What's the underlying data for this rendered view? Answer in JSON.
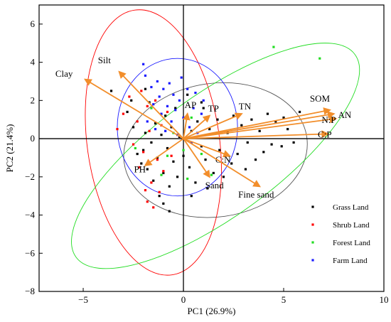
{
  "chart_data": {
    "type": "scatter",
    "subtype": "pca-biplot",
    "xlabel": "PC1 (26.9%)",
    "ylabel": "PC2 (21.4%)",
    "xlim": [
      -7.2,
      10
    ],
    "ylim": [
      -8,
      7
    ],
    "xticks": [
      -5,
      0,
      5,
      10
    ],
    "yticks": [
      -8,
      -6,
      -4,
      -2,
      0,
      2,
      4,
      6
    ],
    "arrow_color": "#f28e2b",
    "loadings": [
      {
        "label": "Clay",
        "x": -4.9,
        "y": 3.1
      },
      {
        "label": "Silt",
        "x": -3.2,
        "y": 3.5
      },
      {
        "label": "AP",
        "x": 0.2,
        "y": 1.3
      },
      {
        "label": "TP",
        "x": 1.3,
        "y": 1.2
      },
      {
        "label": "TN",
        "x": 2.9,
        "y": 1.3
      },
      {
        "label": "SOM",
        "x": 7.3,
        "y": 1.5
      },
      {
        "label": "AN",
        "x": 7.5,
        "y": 1.3
      },
      {
        "label": "N:P",
        "x": 7.6,
        "y": 1.05
      },
      {
        "label": "C:P",
        "x": 7.2,
        "y": 0.25
      },
      {
        "label": "C:N",
        "x": 2.3,
        "y": -0.9
      },
      {
        "label": "PH",
        "x": -1.9,
        "y": -1.4
      },
      {
        "label": "Sand",
        "x": 1.3,
        "y": -2.0
      },
      {
        "label": "Fine sand",
        "x": 3.8,
        "y": -2.5
      }
    ],
    "series": [
      {
        "name": "Grass Land",
        "color": "#000000",
        "ellipse": {
          "cx": 1.6,
          "cy": -0.6,
          "rx": 4.6,
          "ry": 3.5,
          "angle": 8
        },
        "points": [
          [
            -3.6,
            2.5
          ],
          [
            -2.8,
            1.4
          ],
          [
            -2.5,
            0.6
          ],
          [
            -2.3,
            -0.8
          ],
          [
            -2.1,
            -1.3
          ],
          [
            -2.0,
            -0.6
          ],
          [
            -1.9,
            0.3
          ],
          [
            -1.8,
            -1.6
          ],
          [
            -1.7,
            1.9
          ],
          [
            -1.6,
            -0.2
          ],
          [
            -1.5,
            -2.2
          ],
          [
            -1.4,
            0.8
          ],
          [
            -1.3,
            -1.0
          ],
          [
            -1.2,
            -3.0
          ],
          [
            -1.1,
            0.2
          ],
          [
            -1.0,
            -1.8
          ],
          [
            -0.9,
            1.2
          ],
          [
            -0.8,
            -0.5
          ],
          [
            -0.7,
            -2.5
          ],
          [
            -0.6,
            0.6
          ],
          [
            -0.5,
            -1.2
          ],
          [
            -0.4,
            1.6
          ],
          [
            -0.3,
            -2.0
          ],
          [
            -0.2,
            0.1
          ],
          [
            0.0,
            -0.9
          ],
          [
            0.2,
            2.3
          ],
          [
            0.3,
            -1.5
          ],
          [
            0.4,
            0.4
          ],
          [
            0.6,
            -2.3
          ],
          [
            0.7,
            0.9
          ],
          [
            0.9,
            -0.4
          ],
          [
            1.0,
            1.6
          ],
          [
            1.1,
            -1.1
          ],
          [
            1.3,
            0.5
          ],
          [
            1.5,
            -1.8
          ],
          [
            1.7,
            1.0
          ],
          [
            1.8,
            -0.6
          ],
          [
            2.0,
            -2.0
          ],
          [
            2.2,
            0.3
          ],
          [
            2.4,
            -1.3
          ],
          [
            2.5,
            1.2
          ],
          [
            2.7,
            -0.8
          ],
          [
            2.9,
            0.7
          ],
          [
            3.1,
            -1.6
          ],
          [
            3.2,
            -0.2
          ],
          [
            3.4,
            1.0
          ],
          [
            3.6,
            -1.1
          ],
          [
            3.8,
            0.4
          ],
          [
            4.0,
            -0.7
          ],
          [
            4.2,
            1.3
          ],
          [
            4.4,
            -0.3
          ],
          [
            4.6,
            0.9
          ],
          [
            4.9,
            -0.4
          ],
          [
            5.2,
            0.5
          ],
          [
            5.5,
            -0.2
          ],
          [
            5.8,
            1.4
          ],
          [
            -0.7,
            -3.8
          ],
          [
            -1.0,
            -3.4
          ],
          [
            0.4,
            -3.0
          ],
          [
            1.2,
            -2.6
          ],
          [
            -2.6,
            2.0
          ],
          [
            -1.9,
            2.6
          ],
          [
            0.9,
            1.9
          ],
          [
            5.0,
            1.1
          ]
        ]
      },
      {
        "name": "Shrub Land",
        "color": "#ff0000",
        "ellipse": {
          "cx": -1.5,
          "cy": -0.2,
          "rx": 3.3,
          "ry": 7.0,
          "angle": 8
        },
        "points": [
          [
            -3.3,
            0.5
          ],
          [
            -3.0,
            1.3
          ],
          [
            -2.7,
            2.2
          ],
          [
            -2.5,
            -0.3
          ],
          [
            -2.3,
            0.9
          ],
          [
            -2.2,
            -1.5
          ],
          [
            -2.1,
            2.5
          ],
          [
            -2.0,
            -0.7
          ],
          [
            -1.9,
            -2.7
          ],
          [
            -1.8,
            1.7
          ],
          [
            -1.8,
            -3.3
          ],
          [
            -1.7,
            0.4
          ],
          [
            -1.6,
            -2.3
          ],
          [
            -1.5,
            -3.6
          ],
          [
            -1.4,
            2.0
          ],
          [
            -1.3,
            -1.1
          ],
          [
            -1.2,
            -2.8
          ],
          [
            -1.1,
            0.7
          ],
          [
            -1.0,
            -1.7
          ],
          [
            -0.8,
            1.4
          ],
          [
            -0.6,
            -0.9
          ]
        ]
      },
      {
        "name": "Forest Land",
        "color": "#22dd22",
        "ellipse": {
          "cx": 1.6,
          "cy": -0.9,
          "rx": 8.6,
          "ry": 3.2,
          "angle": 36
        },
        "points": [
          [
            4.5,
            4.8
          ],
          [
            6.8,
            4.2
          ],
          [
            -2.4,
            -0.5
          ],
          [
            -1.6,
            1.6
          ],
          [
            -1.1,
            -1.9
          ],
          [
            -0.5,
            0.3
          ],
          [
            0.0,
            -0.6
          ],
          [
            0.4,
            1.1
          ],
          [
            0.9,
            -0.8
          ],
          [
            1.4,
            -1.9
          ],
          [
            -0.8,
            -0.9
          ],
          [
            0.2,
            -2.1
          ]
        ]
      },
      {
        "name": "Farm Land",
        "color": "#1a1aff",
        "ellipse": {
          "cx": -0.3,
          "cy": 0.6,
          "rx": 3.0,
          "ry": 3.6,
          "angle": 0
        },
        "points": [
          [
            -2.0,
            3.9
          ],
          [
            -1.9,
            3.3
          ],
          [
            -1.6,
            2.7
          ],
          [
            -1.5,
            1.8
          ],
          [
            -1.3,
            3.0
          ],
          [
            -1.2,
            2.2
          ],
          [
            -1.1,
            1.3
          ],
          [
            -1.0,
            2.6
          ],
          [
            -0.9,
            0.4
          ],
          [
            -0.8,
            1.7
          ],
          [
            -0.7,
            2.9
          ],
          [
            -0.6,
            0.9
          ],
          [
            -0.5,
            2.3
          ],
          [
            -0.4,
            1.5
          ],
          [
            -0.3,
            0.2
          ],
          [
            -0.2,
            2.0
          ],
          [
            0.0,
            1.1
          ],
          [
            0.2,
            2.6
          ],
          [
            0.3,
            0.6
          ],
          [
            0.5,
            1.6
          ],
          [
            0.6,
            2.4
          ],
          [
            0.7,
            0.3
          ],
          [
            0.9,
            1.3
          ],
          [
            1.0,
            2.0
          ],
          [
            -1.4,
            0.5
          ],
          [
            -0.1,
            3.2
          ],
          [
            0.4,
            -0.2
          ],
          [
            -1.8,
            0.9
          ]
        ]
      }
    ]
  }
}
